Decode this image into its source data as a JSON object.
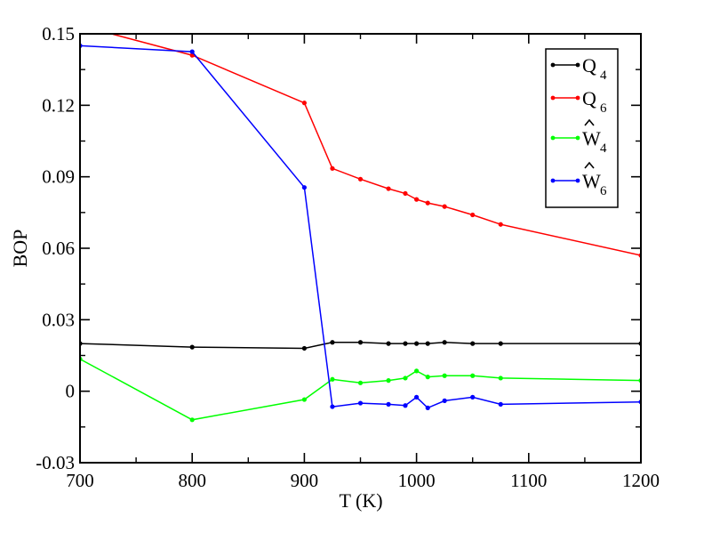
{
  "chart_data": {
    "type": "line",
    "title": "",
    "xlabel": "T (K)",
    "ylabel": "BOP",
    "xlim": [
      700,
      1200
    ],
    "ylim": [
      -0.03,
      0.15
    ],
    "x_ticks": [
      700,
      800,
      900,
      1000,
      1100,
      1200
    ],
    "x_tick_labels": [
      "700",
      "800",
      "900",
      "1000",
      "1100",
      "1200"
    ],
    "y_ticks": [
      -0.03,
      0,
      0.03,
      0.06,
      0.09,
      0.12,
      0.15
    ],
    "y_tick_labels": [
      "-0.03",
      "0",
      "0.03",
      "0.06",
      "0.09",
      "0.12",
      "0.15"
    ],
    "grid": false,
    "legend_position": "top-right",
    "series": [
      {
        "name": "Q",
        "subscript": "4",
        "hat": false,
        "color": "#000000",
        "x": [
          700,
          800,
          900,
          925,
          950,
          975,
          990,
          1000,
          1010,
          1025,
          1050,
          1075,
          1200
        ],
        "y": [
          0.02,
          0.0185,
          0.018,
          0.0205,
          0.0205,
          0.02,
          0.02,
          0.02,
          0.02,
          0.0205,
          0.02,
          0.02,
          0.02
        ]
      },
      {
        "name": "Q",
        "subscript": "6",
        "hat": false,
        "color": "#ff0000",
        "x": [
          700,
          800,
          900,
          925,
          950,
          975,
          990,
          1000,
          1010,
          1025,
          1050,
          1075,
          1200
        ],
        "y": [
          0.1535,
          0.141,
          0.121,
          0.0935,
          0.089,
          0.085,
          0.083,
          0.0805,
          0.079,
          0.0775,
          0.074,
          0.07,
          0.057
        ]
      },
      {
        "name": "W",
        "subscript": "4",
        "hat": true,
        "color": "#00ff00",
        "x": [
          700,
          800,
          900,
          925,
          950,
          975,
          990,
          1000,
          1010,
          1025,
          1050,
          1075,
          1200
        ],
        "y": [
          0.0135,
          -0.012,
          -0.0035,
          0.005,
          0.0035,
          0.0045,
          0.0055,
          0.0085,
          0.006,
          0.0065,
          0.0065,
          0.0055,
          0.0045
        ]
      },
      {
        "name": "W",
        "subscript": "6",
        "hat": true,
        "color": "#0000ff",
        "x": [
          700,
          800,
          900,
          925,
          950,
          975,
          990,
          1000,
          1010,
          1025,
          1050,
          1075,
          1200
        ],
        "y": [
          0.145,
          0.1425,
          0.0855,
          -0.0065,
          -0.005,
          -0.0055,
          -0.006,
          -0.0025,
          -0.007,
          -0.004,
          -0.0025,
          -0.0055,
          -0.0045
        ]
      }
    ]
  }
}
